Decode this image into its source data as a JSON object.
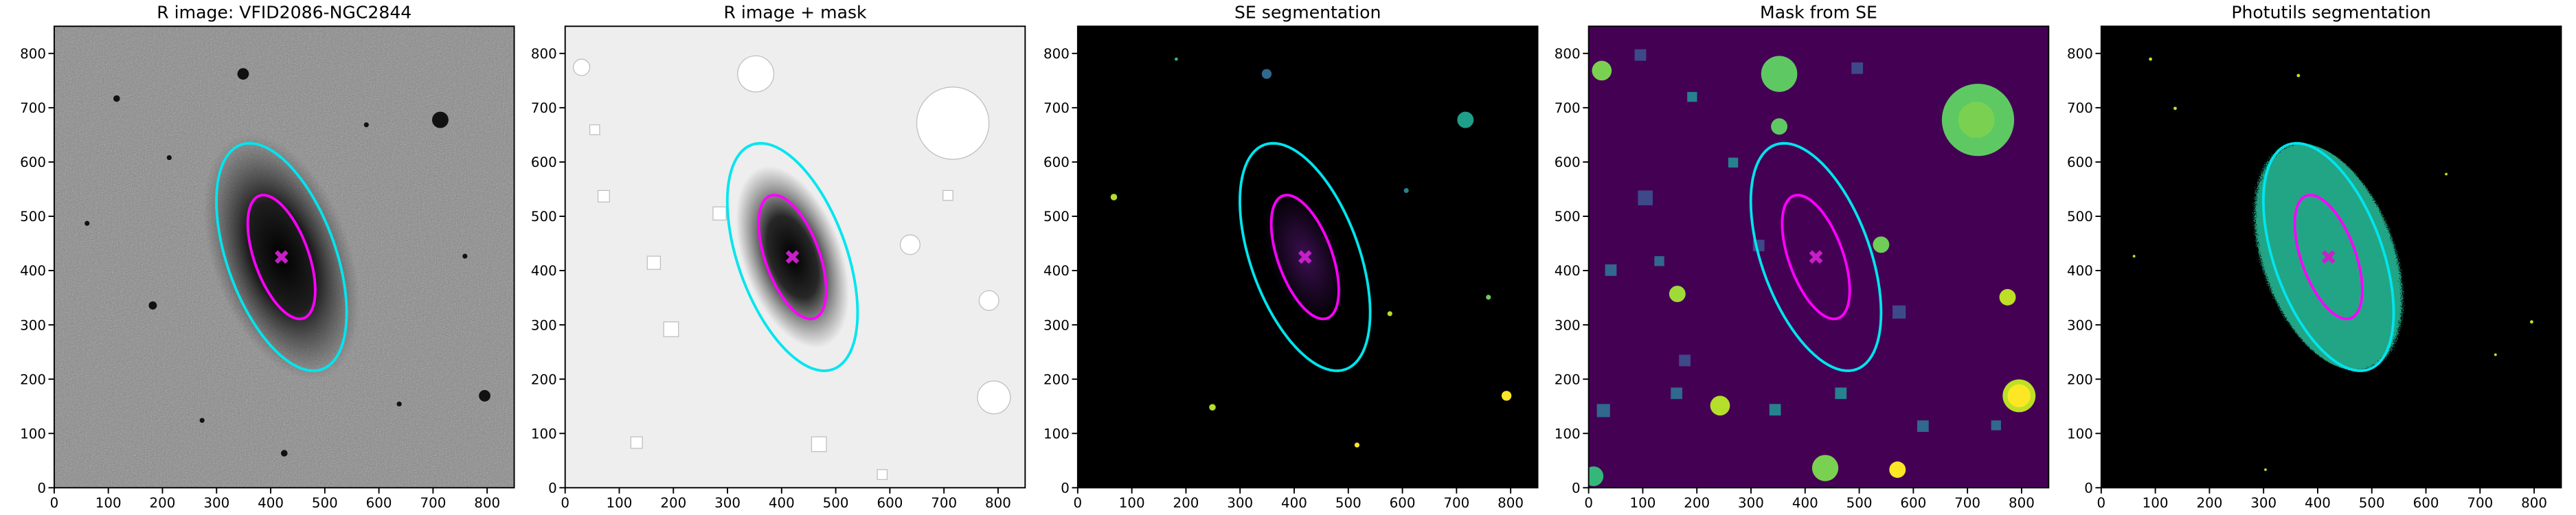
{
  "chart_data": [
    {
      "type": "image",
      "title": "R image: VFID2086-NGC2844",
      "xlim": [
        0,
        850
      ],
      "ylim": [
        0,
        850
      ],
      "xticks": [
        0,
        100,
        200,
        300,
        400,
        500,
        600,
        700,
        800
      ],
      "yticks": [
        0,
        100,
        200,
        300,
        400,
        500,
        600,
        700,
        800
      ],
      "center": {
        "x": 420,
        "y": 425
      },
      "marker_color": "#c71fc7",
      "ellipses": [
        {
          "color": "#00e5ee",
          "a": 220,
          "b": 100,
          "theta": 110
        },
        {
          "color": "#ff00ff",
          "a": 120,
          "b": 50,
          "theta": 110
        }
      ]
    },
    {
      "type": "image",
      "title": "R image + mask",
      "xlim": [
        0,
        850
      ],
      "ylim": [
        0,
        850
      ],
      "xticks": [
        0,
        100,
        200,
        300,
        400,
        500,
        600,
        700,
        800
      ],
      "yticks": [
        0,
        100,
        200,
        300,
        400,
        500,
        600,
        700,
        800
      ],
      "center": {
        "x": 420,
        "y": 425
      },
      "marker_color": "#c71fc7",
      "ellipses": [
        {
          "color": "#00e5ee",
          "a": 220,
          "b": 100,
          "theta": 110
        },
        {
          "color": "#ff00ff",
          "a": 120,
          "b": 50,
          "theta": 110
        }
      ]
    },
    {
      "type": "image",
      "title": "SE segmentation",
      "xlim": [
        0,
        850
      ],
      "ylim": [
        0,
        850
      ],
      "xticks": [
        0,
        100,
        200,
        300,
        400,
        500,
        600,
        700,
        800
      ],
      "yticks": [
        0,
        100,
        200,
        300,
        400,
        500,
        600,
        700,
        800
      ],
      "center": {
        "x": 420,
        "y": 425
      },
      "marker_color": "#c71fc7",
      "ellipses": [
        {
          "color": "#00e5ee",
          "a": 220,
          "b": 100,
          "theta": 110
        },
        {
          "color": "#ff00ff",
          "a": 120,
          "b": 50,
          "theta": 110
        }
      ]
    },
    {
      "type": "image",
      "title": "Mask from SE",
      "xlim": [
        0,
        850
      ],
      "ylim": [
        0,
        850
      ],
      "xticks": [
        0,
        100,
        200,
        300,
        400,
        500,
        600,
        700,
        800
      ],
      "yticks": [
        0,
        100,
        200,
        300,
        400,
        500,
        600,
        700,
        800
      ],
      "center": {
        "x": 420,
        "y": 425
      },
      "marker_color": "#c71fc7",
      "ellipses": [
        {
          "color": "#00e5ee",
          "a": 220,
          "b": 100,
          "theta": 110
        },
        {
          "color": "#ff00ff",
          "a": 120,
          "b": 50,
          "theta": 110
        }
      ]
    },
    {
      "type": "image",
      "title": "Photutils segmentation",
      "xlim": [
        0,
        850
      ],
      "ylim": [
        0,
        850
      ],
      "xticks": [
        0,
        100,
        200,
        300,
        400,
        500,
        600,
        700,
        800
      ],
      "yticks": [
        0,
        100,
        200,
        300,
        400,
        500,
        600,
        700,
        800
      ],
      "center": {
        "x": 420,
        "y": 425
      },
      "marker_color": "#c71fc7",
      "ellipses": [
        {
          "color": "#00e5ee",
          "a": 220,
          "b": 100,
          "theta": 110
        },
        {
          "color": "#ff00ff",
          "a": 120,
          "b": 50,
          "theta": 110
        }
      ]
    }
  ]
}
